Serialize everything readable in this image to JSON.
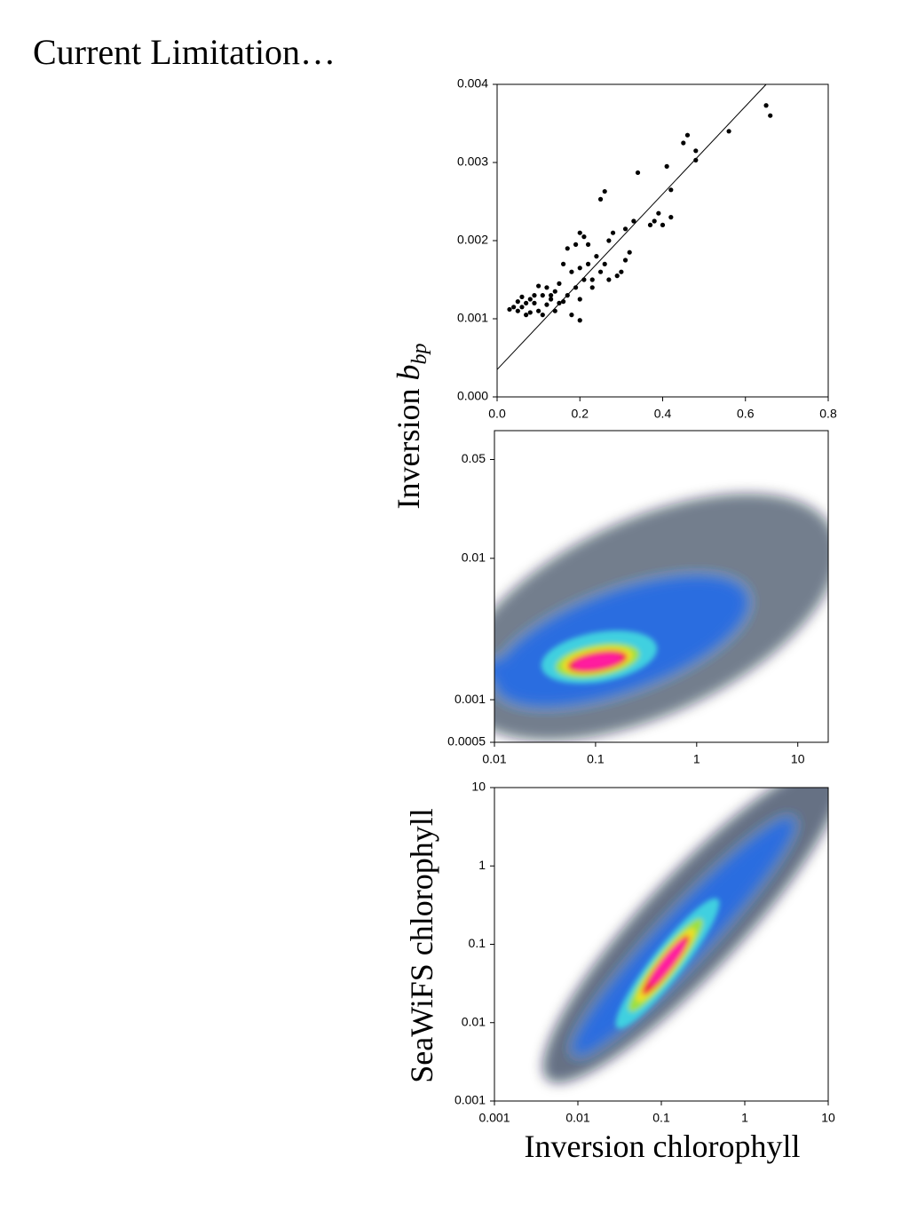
{
  "title": "Current Limitation…",
  "chart_data": [
    {
      "type": "scatter",
      "y_label": "Inversion",
      "y_label_symbol": "b",
      "y_label_subscript": "bp",
      "x": [
        0.65,
        0.66,
        0.56,
        0.46,
        0.45,
        0.48,
        0.48,
        0.41,
        0.34,
        0.26,
        0.25,
        0.42,
        0.39,
        0.42,
        0.38,
        0.4,
        0.37,
        0.33,
        0.31,
        0.28,
        0.27,
        0.32,
        0.31,
        0.3,
        0.29,
        0.21,
        0.22,
        0.19,
        0.24,
        0.22,
        0.2,
        0.18,
        0.25,
        0.27,
        0.21,
        0.19,
        0.23,
        0.17,
        0.2,
        0.15,
        0.14,
        0.13,
        0.12,
        0.11,
        0.1,
        0.09,
        0.08,
        0.07,
        0.06,
        0.05,
        0.04,
        0.06,
        0.08,
        0.1,
        0.12,
        0.14,
        0.16,
        0.18,
        0.2,
        0.05,
        0.07,
        0.09,
        0.11,
        0.13,
        0.15,
        0.03,
        0.17,
        0.16,
        0.2,
        0.23,
        0.26
      ],
      "values": [
        0.00373,
        0.0036,
        0.0034,
        0.00335,
        0.00325,
        0.00315,
        0.00303,
        0.00295,
        0.00287,
        0.00263,
        0.00253,
        0.00265,
        0.00235,
        0.0023,
        0.00225,
        0.0022,
        0.0022,
        0.00225,
        0.00215,
        0.0021,
        0.002,
        0.00185,
        0.00175,
        0.0016,
        0.00155,
        0.00205,
        0.00195,
        0.00195,
        0.0018,
        0.0017,
        0.00165,
        0.0016,
        0.0016,
        0.0015,
        0.0015,
        0.0014,
        0.0014,
        0.0013,
        0.00125,
        0.00145,
        0.00135,
        0.00125,
        0.0014,
        0.0013,
        0.00142,
        0.0013,
        0.00125,
        0.0012,
        0.00115,
        0.0011,
        0.00115,
        0.00128,
        0.00108,
        0.0011,
        0.00118,
        0.0011,
        0.00122,
        0.00105,
        0.00098,
        0.00122,
        0.00105,
        0.0012,
        0.00105,
        0.0013,
        0.0012,
        0.00112,
        0.0019,
        0.0017,
        0.0021,
        0.0015,
        0.0017
      ],
      "color": "#000000",
      "fit_line": {
        "x": [
          0,
          0.65
        ],
        "y": [
          0.00035,
          0.004
        ]
      },
      "xlim": [
        0,
        0.8
      ],
      "ylim": [
        0,
        0.004
      ],
      "xticks": [
        {
          "value": 0,
          "label": "0.0"
        },
        0.2,
        0.4,
        0.6,
        0.8
      ],
      "yticks": [
        {
          "value": 0,
          "label": "0.000"
        },
        0.001,
        0.002,
        0.003,
        0.004
      ]
    },
    {
      "type": "density",
      "xscale": "log",
      "yscale": "log",
      "xlim": [
        0.01,
        20
      ],
      "ylim": [
        0.0005,
        0.08
      ],
      "xticks": [
        0.01,
        0.1,
        1,
        10
      ],
      "yticks": [
        0.0005,
        0.001,
        0.01,
        0.05
      ]
    },
    {
      "type": "density",
      "xscale": "log",
      "yscale": "log",
      "y_label": "SeaWiFS chlorophyll",
      "x_label": "Inversion chlorophyll",
      "xlim": [
        0.001,
        10
      ],
      "ylim": [
        0.001,
        10
      ],
      "xticks": [
        0.001,
        0.01,
        0.1,
        1,
        10
      ],
      "yticks": [
        0.001,
        0.01,
        0.1,
        1,
        10
      ]
    }
  ]
}
